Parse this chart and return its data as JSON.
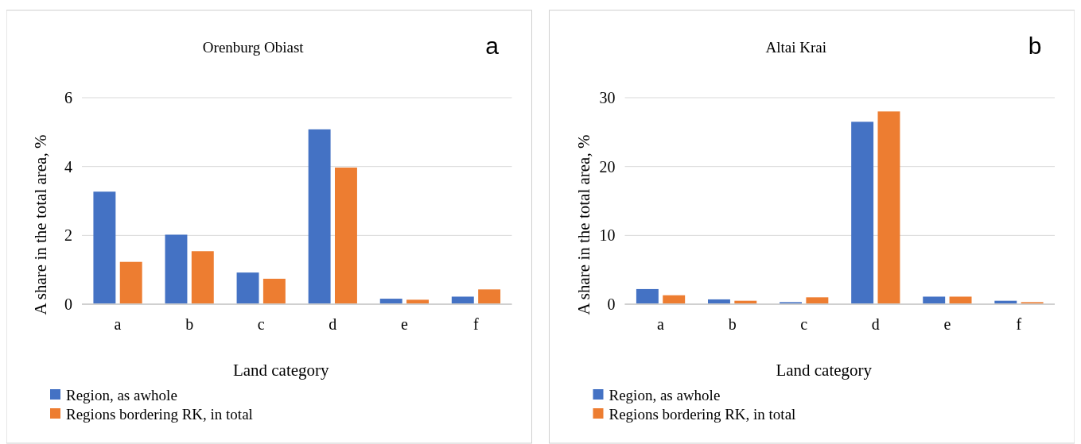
{
  "chart_data": [
    {
      "type": "bar",
      "title": "Orenburg Obiast",
      "annotations": [
        "a"
      ],
      "xlabel": "Land category",
      "ylabel": "A share in the total area, %",
      "categories": [
        "a",
        "b",
        "c",
        "d",
        "e",
        "f"
      ],
      "series": [
        {
          "name": "Region, as awhole",
          "color": "#4472c4",
          "values": [
            3.27,
            2.02,
            0.92,
            5.08,
            0.16,
            0.22
          ]
        },
        {
          "name": "Regions bordering RK, in total",
          "color": "#ed7d31",
          "values": [
            1.23,
            1.54,
            0.74,
            3.97,
            0.13,
            0.43
          ]
        }
      ],
      "ylim": [
        0,
        6
      ],
      "yticks": [
        0,
        2,
        4,
        6
      ],
      "grid": "y",
      "legend": "bottom"
    },
    {
      "type": "bar",
      "title": "Altai Krai",
      "annotations": [
        "b"
      ],
      "xlabel": "Land category",
      "ylabel": "A share in the total area, %",
      "categories": [
        "a",
        "b",
        "c",
        "d",
        "e",
        "f"
      ],
      "series": [
        {
          "name": "Region, as awhole",
          "color": "#4472c4",
          "values": [
            2.2,
            0.7,
            0.3,
            26.5,
            1.1,
            0.5
          ]
        },
        {
          "name": "Regions bordering RK, in total",
          "color": "#ed7d31",
          "values": [
            1.3,
            0.5,
            1.0,
            28.0,
            1.1,
            0.3
          ]
        }
      ],
      "ylim": [
        0,
        30
      ],
      "yticks": [
        0,
        10,
        20,
        30
      ],
      "grid": "y",
      "legend": "bottom"
    }
  ]
}
